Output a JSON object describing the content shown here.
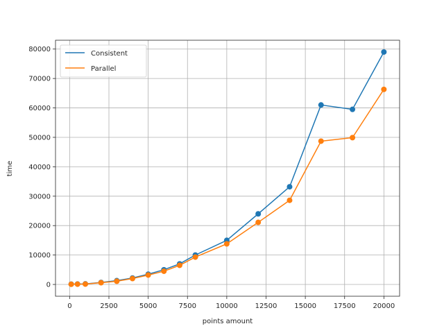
{
  "chart_data": {
    "type": "line",
    "title": "",
    "xlabel": "points amount",
    "ylabel": "time",
    "xlim": [
      -900,
      21000
    ],
    "ylim": [
      -4000,
      83000
    ],
    "xticks": [
      0,
      2500,
      5000,
      7500,
      10000,
      12500,
      15000,
      17500,
      20000
    ],
    "yticks": [
      0,
      10000,
      20000,
      30000,
      40000,
      50000,
      60000,
      70000,
      80000
    ],
    "grid": true,
    "legend": "top-left",
    "x": [
      100,
      500,
      1000,
      2000,
      3000,
      4000,
      5000,
      6000,
      7000,
      8000,
      10000,
      12000,
      14000,
      16000,
      18000,
      20000
    ],
    "series": [
      {
        "name": "Consistent",
        "color": "#1f77b4",
        "values": [
          100,
          150,
          200,
          700,
          1300,
          2200,
          3500,
          5000,
          7000,
          10000,
          15000,
          24000,
          33200,
          61000,
          59500,
          79000
        ]
      },
      {
        "name": "Parallel",
        "color": "#ff7f0e",
        "values": [
          80,
          110,
          140,
          600,
          1100,
          2000,
          3200,
          4500,
          6500,
          9300,
          13800,
          21100,
          28600,
          48700,
          49900,
          66300
        ]
      }
    ]
  }
}
